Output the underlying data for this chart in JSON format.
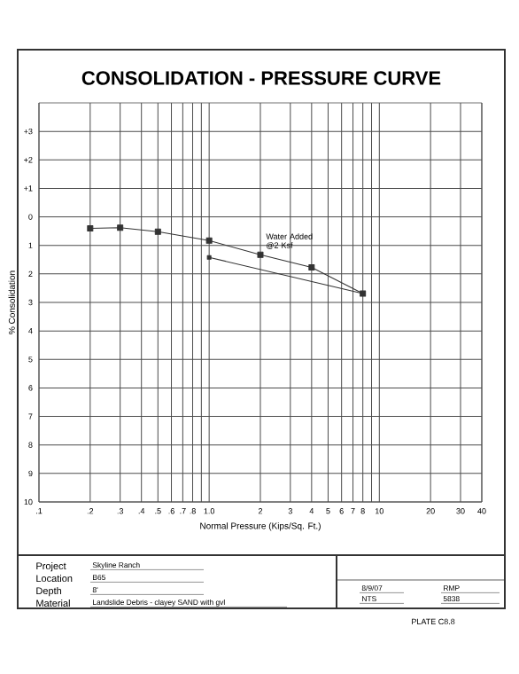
{
  "chart_data": {
    "type": "line",
    "title": "CONSOLIDATION - PRESSURE CURVE",
    "xlabel": "Normal Pressure (Kips/Sq. Ft.)",
    "ylabel": "% Consolidation",
    "log": "x",
    "grid": true,
    "marker": "square",
    "xlim": [
      0.1,
      40
    ],
    "ylim": [
      10,
      -4
    ],
    "xticks": [
      {
        "value": 0.1,
        "label": ".1"
      },
      {
        "value": 0.2,
        "label": ".2"
      },
      {
        "value": 0.3,
        "label": ".3"
      },
      {
        "value": 0.4,
        "label": ".4"
      },
      {
        "value": 0.5,
        "label": ".5"
      },
      {
        "value": 0.6,
        "label": ".6"
      },
      {
        "value": 0.7,
        "label": ".7"
      },
      {
        "value": 0.8,
        "label": ".8"
      },
      {
        "value": 0.9,
        "label": null
      },
      {
        "value": 1,
        "label": "1.0"
      },
      2,
      3,
      4,
      5,
      6,
      7,
      8,
      {
        "value": 9,
        "label": null
      },
      10,
      20,
      30,
      40
    ],
    "yticks": [
      {
        "value": -3,
        "label": "+3"
      },
      {
        "value": -2,
        "label": "+2"
      },
      {
        "value": -1,
        "label": "+1"
      },
      0,
      1,
      2,
      3,
      4,
      5,
      6,
      7,
      8,
      9,
      10
    ],
    "series": [
      {
        "color": "#333333",
        "x": [
          0.2,
          0.3,
          0.5,
          1,
          2,
          4,
          8
        ],
        "values": [
          0.4,
          0.38,
          0.52,
          0.83,
          1.33,
          1.77,
          2.69
        ]
      },
      {
        "color": "#333333",
        "x": [
          8,
          1
        ],
        "values": [
          2.69,
          1.42
        ]
      }
    ],
    "annotations": [
      {
        "text": "Water Added @2 Ksf",
        "x": 2,
        "y": 1.33
      },
      "Project",
      "Skyline Ranch",
      "Location",
      "B65",
      "Depth",
      "8'",
      "Material",
      "Landslide Debris - clayey SAND with gvl",
      "8/9/07",
      "NTS",
      "RMP",
      "5838",
      "PLATE C8.8"
    ]
  }
}
